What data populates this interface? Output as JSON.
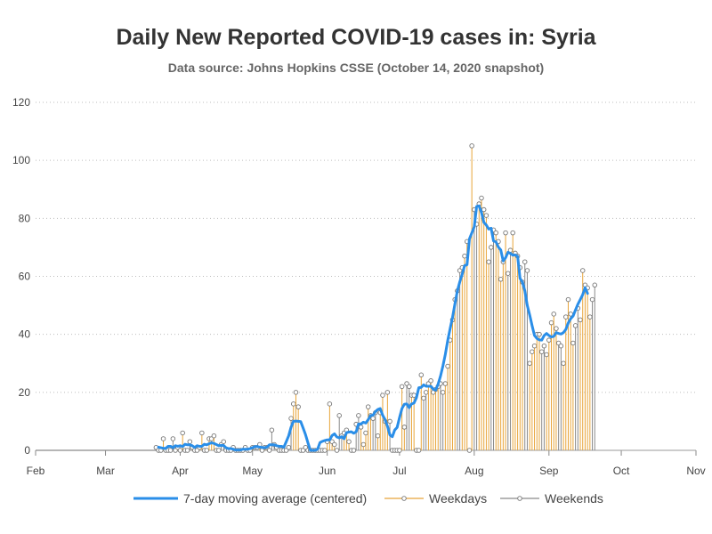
{
  "chart_data": {
    "type": "line",
    "title": "Daily New Reported COVID-19 cases in: Syria",
    "subtitle": "Data source: Johns Hopkins CSSE (October 14, 2020 snapshot)",
    "xlabel": "",
    "ylabel": "",
    "x_range": [
      "2020-02-01",
      "2020-11-01"
    ],
    "ylim": [
      0,
      120
    ],
    "y_ticks": [
      0,
      20,
      40,
      60,
      80,
      100,
      120
    ],
    "x_ticks": [
      {
        "date": "2020-02-01",
        "label": "Feb"
      },
      {
        "date": "2020-03-01",
        "label": "Mar"
      },
      {
        "date": "2020-04-01",
        "label": "Apr"
      },
      {
        "date": "2020-05-01",
        "label": "May"
      },
      {
        "date": "2020-06-01",
        "label": "Jun"
      },
      {
        "date": "2020-07-01",
        "label": "Jul"
      },
      {
        "date": "2020-08-01",
        "label": "Aug"
      },
      {
        "date": "2020-09-01",
        "label": "Sep"
      },
      {
        "date": "2020-10-01",
        "label": "Oct"
      },
      {
        "date": "2020-11-01",
        "label": "Nov"
      }
    ],
    "grid": "horizontal dotted",
    "legend_position": "bottom",
    "series": [
      {
        "name": "7-day moving average (centered)",
        "kind": "line",
        "color": "#2a8ee8"
      },
      {
        "name": "Weekdays",
        "kind": "needle",
        "color": "#e8a53a"
      },
      {
        "name": "Weekends",
        "kind": "needle",
        "color": "#8a8a8a"
      }
    ],
    "daily_start": "2020-03-22",
    "daily_values": [
      1,
      0,
      0,
      4,
      0,
      0,
      0,
      4,
      0,
      1,
      0,
      6,
      0,
      0,
      3,
      1,
      0,
      0,
      1,
      6,
      0,
      0,
      4,
      4,
      5,
      0,
      0,
      2,
      3,
      0,
      0,
      0,
      1,
      0,
      0,
      0,
      0,
      1,
      0,
      0,
      1,
      1,
      1,
      2,
      0,
      1,
      1,
      0,
      7,
      2,
      1,
      0,
      0,
      0,
      0,
      1,
      11,
      16,
      20,
      15,
      0,
      0,
      1,
      0,
      0,
      0,
      0,
      0,
      0,
      0,
      0,
      3,
      16,
      3,
      2,
      0,
      12,
      5,
      6,
      7,
      3,
      0,
      0,
      9,
      12,
      8,
      2,
      6,
      15,
      12,
      11,
      13,
      5,
      13,
      19,
      10,
      20,
      10,
      0,
      0,
      0,
      0,
      22,
      8,
      23,
      22,
      19,
      19,
      0,
      0,
      26,
      18,
      20,
      23,
      24,
      20,
      21,
      22,
      23,
      20,
      23,
      29,
      38,
      45,
      52,
      55,
      62,
      63,
      67,
      72,
      0,
      105,
      83,
      78,
      85,
      87,
      83,
      81,
      65,
      70,
      76,
      75,
      72,
      59,
      65,
      75,
      61,
      69,
      75,
      68,
      67,
      63,
      58,
      65,
      62,
      30,
      34,
      36,
      40,
      40,
      34,
      36,
      33,
      38,
      44,
      47,
      42,
      37,
      36,
      30,
      46,
      52,
      47,
      37,
      43,
      49,
      45,
      62,
      57,
      56,
      46,
      52,
      57
    ],
    "moving_average": [
      1.1,
      0.9,
      0.7,
      0.7,
      1.4,
      1.4,
      0.9,
      1.6,
      1.4,
      1.6,
      1.3,
      2.1,
      1.9,
      1.9,
      1.6,
      1.0,
      1.6,
      1.4,
      1.4,
      2.1,
      1.9,
      2.3,
      2.6,
      2.4,
      2.0,
      1.6,
      1.7,
      1.7,
      0.9,
      0.6,
      0.6,
      0.4,
      0.1,
      0.1,
      0.1,
      0.4,
      0.4,
      0.4,
      0.6,
      0.9,
      1.3,
      1.3,
      1.1,
      1.0,
      0.9,
      1.1,
      1.9,
      1.9,
      1.9,
      1.6,
      1.4,
      1.4,
      1.1,
      3.0,
      5.0,
      8.0,
      10.0,
      10.1,
      10.0,
      9.9,
      7.7,
      5.4,
      2.6,
      0.0,
      0.0,
      0.0,
      0.4,
      2.7,
      3.1,
      3.4,
      3.6,
      3.6,
      5.1,
      5.7,
      4.6,
      4.3,
      4.7,
      4.0,
      6.1,
      6.3,
      6.4,
      5.9,
      6.4,
      9.1,
      9.1,
      9.7,
      9.4,
      10.6,
      12.0,
      12.1,
      13.4,
      14.1,
      14.4,
      12.1,
      10.6,
      8.3,
      5.3,
      4.7,
      7.0,
      7.9,
      11.3,
      14.4,
      15.9,
      16.0,
      14.7,
      16.0,
      16.3,
      18.1,
      21.6,
      21.7,
      22.6,
      22.1,
      22.1,
      22.1,
      21.1,
      20.8,
      22.8,
      25.6,
      29.1,
      33.1,
      37.9,
      42.0,
      45.9,
      50.6,
      55.0,
      58.1,
      60.7,
      63.7,
      64.0,
      72.9,
      75.0,
      77.1,
      84.1,
      84.3,
      82.0,
      78.6,
      77.7,
      76.3,
      76.6,
      72.2,
      71.9,
      70.1,
      69.1,
      65.3,
      66.4,
      68.3,
      67.9,
      67.3,
      67.4,
      66.9,
      59.3,
      58.0,
      55.0,
      50.0,
      46.7,
      43.0,
      39.6,
      38.6,
      38.1,
      38.0,
      39.6,
      40.3,
      39.6,
      39.1,
      39.3,
      40.6,
      40.3,
      40.1,
      40.6,
      41.7,
      43.9,
      45.4,
      46.3,
      48.4,
      50.4,
      52.0,
      53.7,
      56.1,
      54.1
    ]
  }
}
